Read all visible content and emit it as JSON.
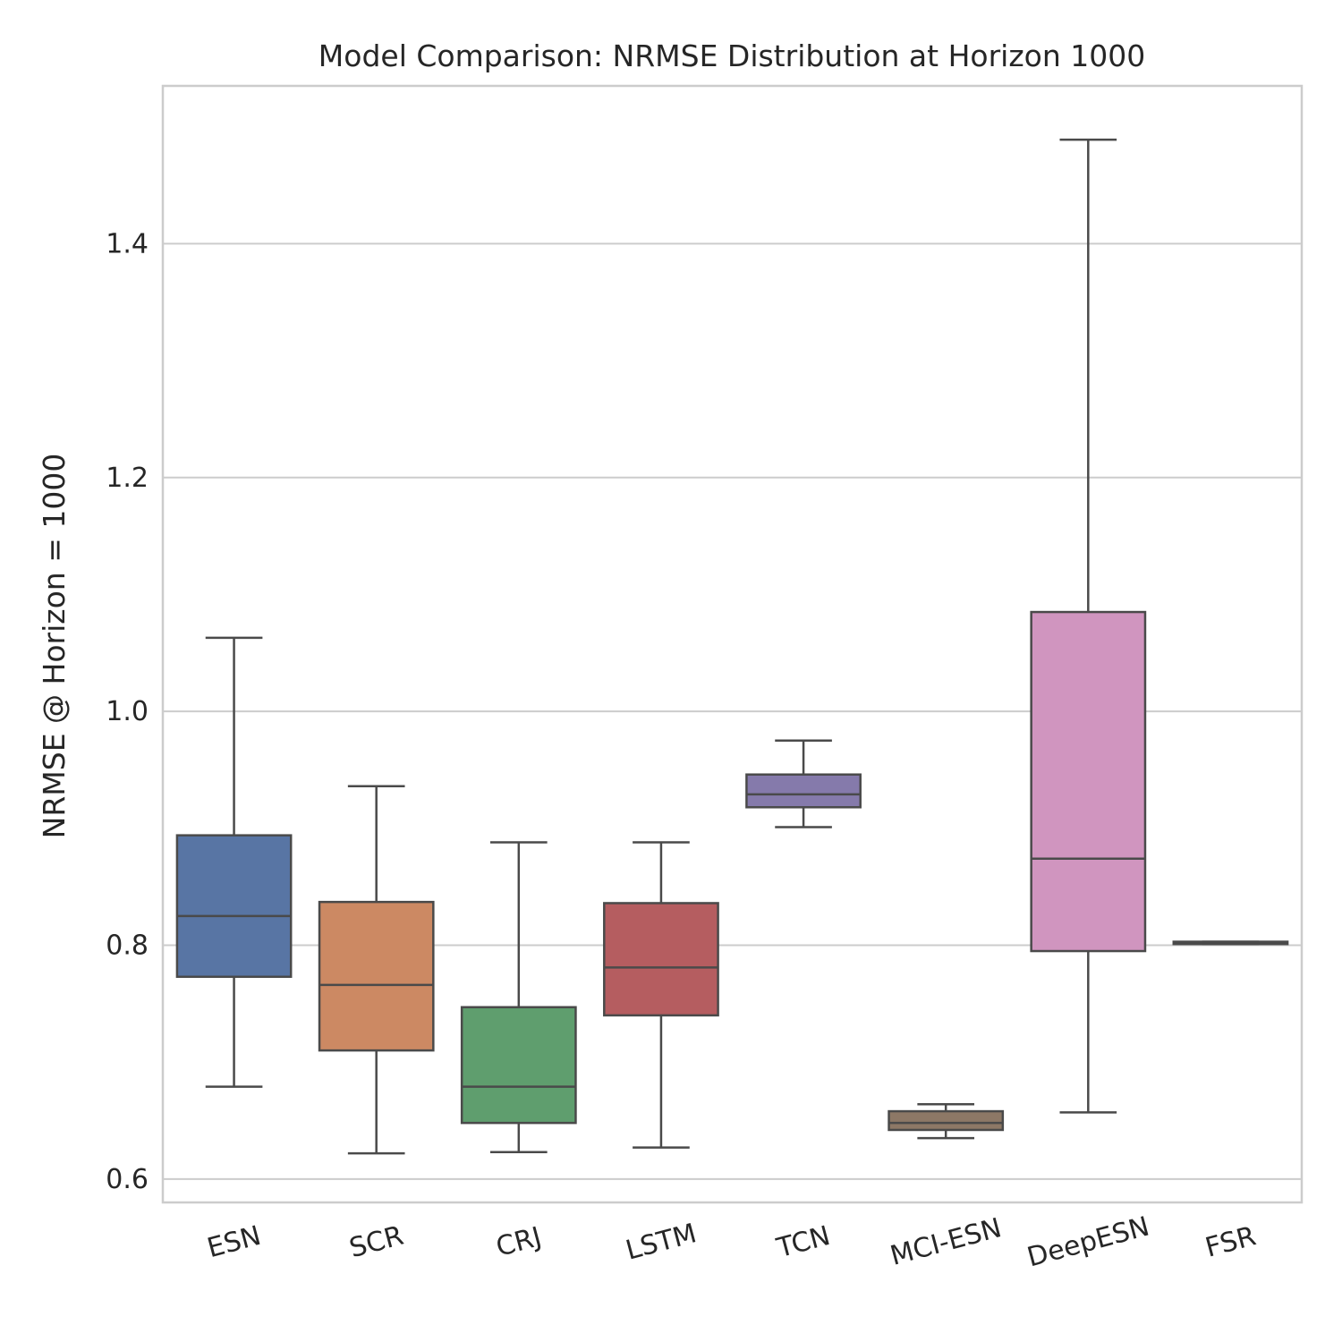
{
  "chart_data": {
    "type": "box",
    "title": "Model Comparison: NRMSE Distribution at Horizon 1000",
    "xlabel": "",
    "ylabel": "NRMSE @ Horizon = 1000",
    "ylim": [
      0.58,
      1.535
    ],
    "yticks": [
      0.6,
      0.8,
      1.0,
      1.2,
      1.4
    ],
    "ytick_labels": [
      "0.6",
      "0.8",
      "1.0",
      "1.2",
      "1.4"
    ],
    "grid": "horizontal",
    "categories": [
      "ESN",
      "SCR",
      "CRJ",
      "LSTM",
      "TCN",
      "MCI-ESN",
      "DeepESN",
      "FSR"
    ],
    "boxes": [
      {
        "label": "ESN",
        "whisker_low": 0.679,
        "q1": 0.773,
        "median": 0.825,
        "q3": 0.894,
        "whisker_high": 1.063,
        "color": "#5875a4"
      },
      {
        "label": "SCR",
        "whisker_low": 0.622,
        "q1": 0.71,
        "median": 0.766,
        "q3": 0.837,
        "whisker_high": 0.936,
        "color": "#cc8963"
      },
      {
        "label": "CRJ",
        "whisker_low": 0.623,
        "q1": 0.648,
        "median": 0.679,
        "q3": 0.747,
        "whisker_high": 0.888,
        "color": "#5f9e6e"
      },
      {
        "label": "LSTM",
        "whisker_low": 0.627,
        "q1": 0.74,
        "median": 0.781,
        "q3": 0.836,
        "whisker_high": 0.888,
        "color": "#b55d60"
      },
      {
        "label": "TCN",
        "whisker_low": 0.901,
        "q1": 0.918,
        "median": 0.929,
        "q3": 0.946,
        "whisker_high": 0.975,
        "color": "#857aab"
      },
      {
        "label": "MCI-ESN",
        "whisker_low": 0.635,
        "q1": 0.642,
        "median": 0.648,
        "q3": 0.658,
        "whisker_high": 0.664,
        "color": "#8d7866"
      },
      {
        "label": "DeepESN",
        "whisker_low": 0.657,
        "q1": 0.795,
        "median": 0.874,
        "q3": 1.085,
        "whisker_high": 1.489,
        "color": "#d095bf"
      },
      {
        "label": "FSR",
        "whisker_low": 0.801,
        "q1": 0.801,
        "median": 0.802,
        "q3": 0.803,
        "whisker_high": 0.803,
        "color": "#8c8c8c"
      }
    ]
  }
}
